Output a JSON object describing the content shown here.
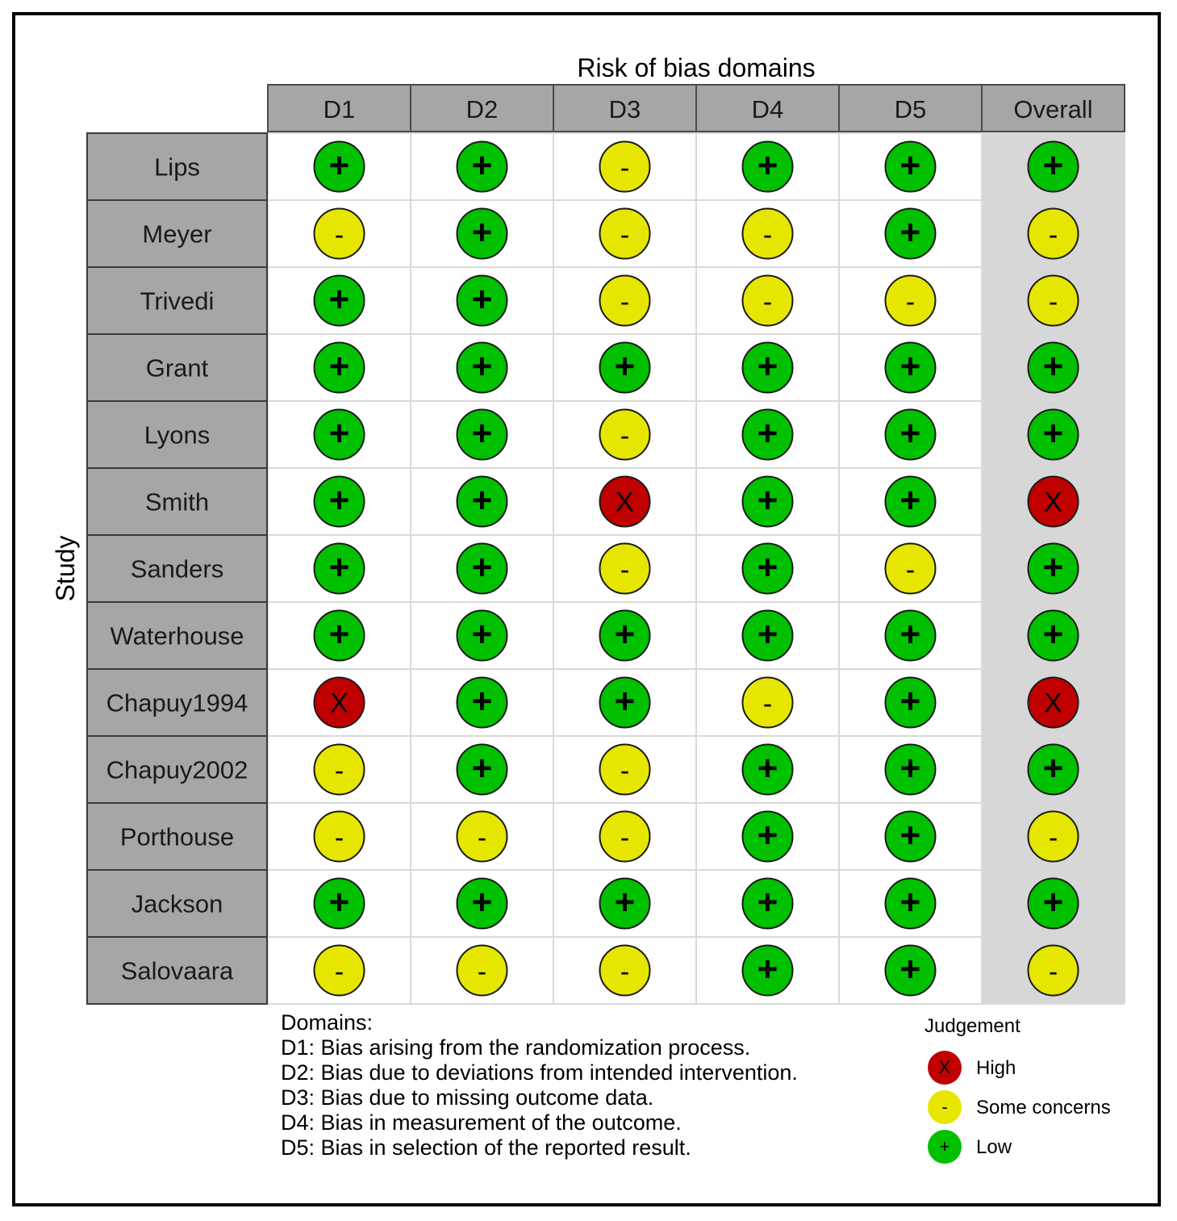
{
  "chart_data": {
    "type": "table",
    "title": "Risk of bias domains",
    "ylabel": "Study",
    "columns": [
      "D1",
      "D2",
      "D3",
      "D4",
      "D5",
      "Overall"
    ],
    "studies": [
      {
        "name": "Lips",
        "judgements": [
          "+",
          "+",
          "-",
          "+",
          "+",
          "+"
        ]
      },
      {
        "name": "Meyer",
        "judgements": [
          "-",
          "+",
          "-",
          "-",
          "+",
          "-"
        ]
      },
      {
        "name": "Trivedi",
        "judgements": [
          "+",
          "+",
          "-",
          "-",
          "-",
          "-"
        ]
      },
      {
        "name": "Grant",
        "judgements": [
          "+",
          "+",
          "+",
          "+",
          "+",
          "+"
        ]
      },
      {
        "name": "Lyons",
        "judgements": [
          "+",
          "+",
          "-",
          "+",
          "+",
          "+"
        ]
      },
      {
        "name": "Smith",
        "judgements": [
          "+",
          "+",
          "X",
          "+",
          "+",
          "X"
        ]
      },
      {
        "name": "Sanders",
        "judgements": [
          "+",
          "+",
          "-",
          "+",
          "-",
          "+"
        ]
      },
      {
        "name": "Waterhouse",
        "judgements": [
          "+",
          "+",
          "+",
          "+",
          "+",
          "+"
        ]
      },
      {
        "name": "Chapuy1994",
        "judgements": [
          "X",
          "+",
          "+",
          "-",
          "+",
          "X"
        ]
      },
      {
        "name": "Chapuy2002",
        "judgements": [
          "-",
          "+",
          "-",
          "+",
          "+",
          "+"
        ]
      },
      {
        "name": "Porthouse",
        "judgements": [
          "-",
          "-",
          "-",
          "+",
          "+",
          "-"
        ]
      },
      {
        "name": "Jackson",
        "judgements": [
          "+",
          "+",
          "+",
          "+",
          "+",
          "+"
        ]
      },
      {
        "name": "Salovaara",
        "judgements": [
          "-",
          "-",
          "-",
          "+",
          "+",
          "-"
        ]
      }
    ],
    "legend": {
      "title": "Judgement",
      "placement": "bottom-right",
      "items": [
        {
          "symbol": "X",
          "label": "High",
          "color": "#c00000"
        },
        {
          "symbol": "-",
          "label": "Some concerns",
          "color": "#e6e600"
        },
        {
          "symbol": "+",
          "label": "Low",
          "color": "#00c000"
        }
      ]
    }
  },
  "domains_note": {
    "heading": "Domains:",
    "lines": [
      "D1: Bias arising from the randomization process.",
      "D2: Bias due to deviations from intended intervention.",
      "D3: Bias due to missing outcome data.",
      "D4: Bias in measurement of the outcome.",
      "D5: Bias in selection of the reported result."
    ]
  },
  "colors": {
    "header_fill": "#a6a6a6",
    "overall_column_fill": "#d7d7d7",
    "cell_fill": "#ffffff",
    "grid_line": "#d9d9d9"
  }
}
